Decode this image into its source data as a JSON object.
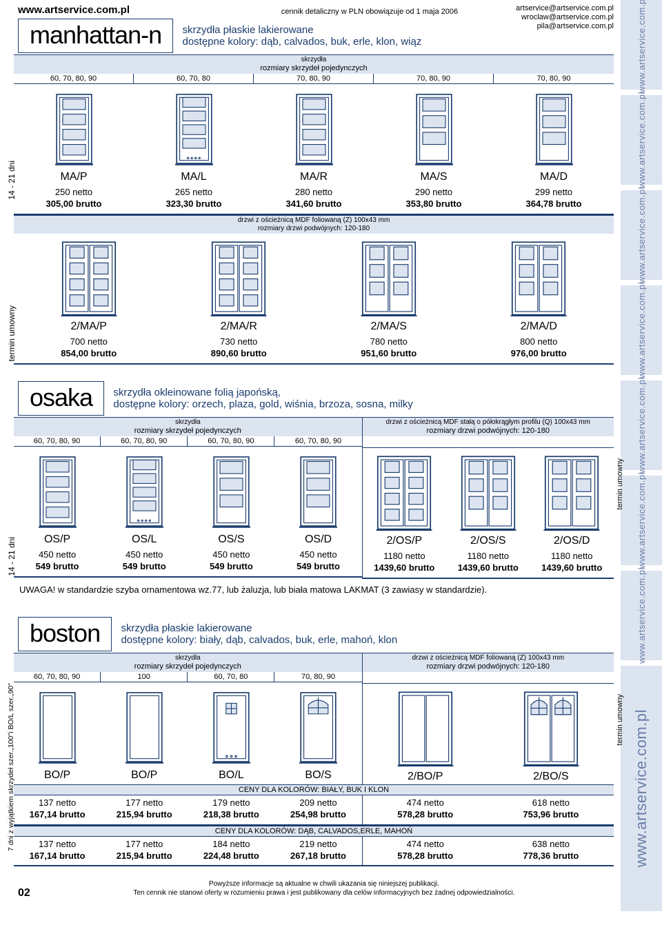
{
  "header": {
    "url": "www.artservice.com.pl",
    "cennik": "cennik detaliczny w PLN obowiązuje od 1 maja 2006",
    "emails": [
      "artservice@artservice.com.pl",
      "wroclaw@artservice.com.pl",
      "pila@artservice.com.pl"
    ]
  },
  "rightRail": {
    "repeat": "www.artservice.com.pl",
    "big": "www.artservice.com.pl"
  },
  "manhattan": {
    "title": "manhattan-n",
    "sub1": "skrzydła płaskie lakierowane",
    "sub2": "dostępne kolory: dąb, calvados, buk, erle, klon, wiąz",
    "band1_top": "skrzydła",
    "band1_mid": "rozmiary skrzydeł pojedynczych",
    "sizes": [
      "60, 70, 80, 90",
      "60, 70, 80",
      "70, 80, 90",
      "70, 80, 90",
      "70, 80, 90"
    ],
    "leftlabel": "14 - 21 dni",
    "singles": [
      {
        "name": "MA/P",
        "netto": "250 netto",
        "brutto": "305,00 brutto"
      },
      {
        "name": "MA/L",
        "netto": "265 netto",
        "brutto": "323,30 brutto"
      },
      {
        "name": "MA/R",
        "netto": "280 netto",
        "brutto": "341,60 brutto"
      },
      {
        "name": "MA/S",
        "netto": "290 netto",
        "brutto": "353,80 brutto"
      },
      {
        "name": "MA/D",
        "netto": "299 netto",
        "brutto": "364,78 brutto"
      }
    ],
    "band2a": "drzwi z ościeżnicą MDF foliowaną (Z) 100x43 mm",
    "band2b": "rozmiary drzwi podwójnych: 120-180",
    "leftlabel2": "termin umowny",
    "doubles": [
      {
        "name": "2/MA/P",
        "netto": "700 netto",
        "brutto": "854,00 brutto"
      },
      {
        "name": "2/MA/R",
        "netto": "730 netto",
        "brutto": "890,60 brutto"
      },
      {
        "name": "2/MA/S",
        "netto": "780 netto",
        "brutto": "951,60 brutto"
      },
      {
        "name": "2/MA/D",
        "netto": "800 netto",
        "brutto": "976,00 brutto"
      }
    ]
  },
  "osaka": {
    "title": "osaka",
    "sub1": "skrzydła okleinowane folią japońską,",
    "sub2": "dostępne kolory: orzech, plaza, gold, wiśnia, brzoza, sosna, milky",
    "left": {
      "band_top": "skrzydła",
      "band_mid": "rozmiary skrzydeł pojedynczych",
      "sizes": [
        "60, 70, 80, 90",
        "60, 70, 80, 90",
        "60, 70, 80, 90",
        "60, 70, 80, 90"
      ]
    },
    "right": {
      "band_top": "drzwi z ościeżnicą MDF stałą o półokrągłym profilu (Q) 100x43 mm",
      "band_mid": "rozmiary drzwi podwójnych: 120-180"
    },
    "leftlabel": "14 - 21 dni",
    "rightlabel": "termin umowny",
    "singles": [
      {
        "name": "OS/P",
        "netto": "450 netto",
        "brutto": "549 brutto"
      },
      {
        "name": "OS/L",
        "netto": "450 netto",
        "brutto": "549 brutto"
      },
      {
        "name": "OS/S",
        "netto": "450 netto",
        "brutto": "549 brutto"
      },
      {
        "name": "OS/D",
        "netto": "450 netto",
        "brutto": "549 brutto"
      }
    ],
    "doubles": [
      {
        "name": "2/OS/P",
        "netto": "1180 netto",
        "brutto": "1439,60 brutto"
      },
      {
        "name": "2/OS/S",
        "netto": "1180 netto",
        "brutto": "1439,60 brutto"
      },
      {
        "name": "2/OS/D",
        "netto": "1180 netto",
        "brutto": "1439,60 brutto"
      }
    ],
    "uwaga": "UWAGA! w standardzie szyba ornamentowa wz.77, lub żaluzja, lub biała matowa LAKMAT (3 zawiasy w standardzie)."
  },
  "boston": {
    "title": "boston",
    "sub1": "skrzydła płaskie lakierowane",
    "sub2": "dostępne kolory: biały, dąb, calvados, buk, erle, mahoń, klon",
    "left": {
      "band_top": "skrzydła",
      "band_mid": "rozmiary skrzydeł pojedynczych",
      "sizes": [
        "60, 70, 80, 90",
        "100",
        "60, 70, 80",
        "70, 80, 90"
      ]
    },
    "right": {
      "band_top": "drzwi z ościeżnicą MDF foliowaną (Z) 100x43 mm",
      "band_mid": "rozmiary drzwi podwójnych: 120-180"
    },
    "leftlabel": "7 dni z wyjątkiem skrzydeł szer.„100\"i BO/L szer.„90\"",
    "rightlabel": "termin umowny",
    "singles": [
      {
        "name": "BO/P"
      },
      {
        "name": "BO/P"
      },
      {
        "name": "BO/L"
      },
      {
        "name": "BO/S"
      }
    ],
    "doubles": [
      {
        "name": "2/BO/P"
      },
      {
        "name": "2/BO/S"
      }
    ],
    "priceband1": "CENY DLA KOLORÓW: BIAŁY, BUK I KLON",
    "prices1L": [
      {
        "netto": "137 netto",
        "brutto": "167,14 brutto"
      },
      {
        "netto": "177 netto",
        "brutto": "215,94 brutto"
      },
      {
        "netto": "179 netto",
        "brutto": "218,38 brutto"
      },
      {
        "netto": "209 netto",
        "brutto": "254,98 brutto"
      }
    ],
    "prices1R": [
      {
        "netto": "474 netto",
        "brutto": "578,28 brutto"
      },
      {
        "netto": "618 netto",
        "brutto": "753,96 brutto"
      }
    ],
    "priceband2": "CENY DLA KOLORÓW: DĄB, CALVADOS,ERLE, MAHOŃ",
    "prices2L": [
      {
        "netto": "137 netto",
        "brutto": "167,14 brutto"
      },
      {
        "netto": "177 netto",
        "brutto": "215,94 brutto"
      },
      {
        "netto": "184 netto",
        "brutto": "224,48 brutto"
      },
      {
        "netto": "219 netto",
        "brutto": "267,18 brutto"
      }
    ],
    "prices2R": [
      {
        "netto": "474 netto",
        "brutto": "578,28 brutto"
      },
      {
        "netto": "638 netto",
        "brutto": "778,36 brutto"
      }
    ]
  },
  "footer": {
    "pageno": "02",
    "line1": "Powyższe informacje są aktualne w chwili ukazania się niniejszej publikacji.",
    "line2": "Ten cennik nie stanowi oferty w rozumieniu prawa i jest publikowany dla celów informacyjnych bez żadnej odpowiedzialności."
  },
  "style": {
    "accent": "#1a3c6e",
    "band_bg": "#dce4f0",
    "rail_color": "#6a7da8"
  }
}
